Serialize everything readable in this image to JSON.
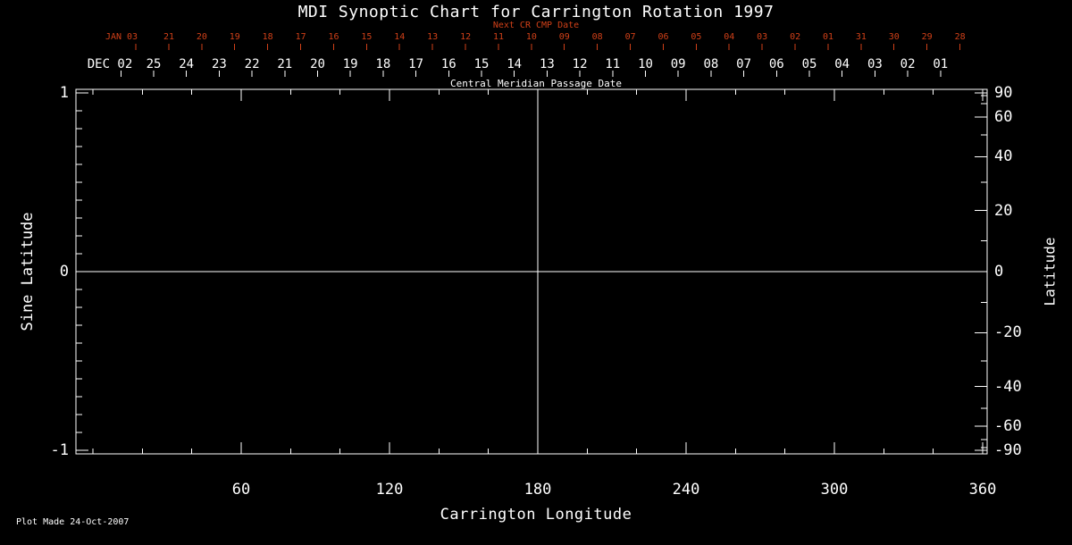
{
  "colors": {
    "background": "#000000",
    "foreground": "#ffffff",
    "accent_red": "#d04018"
  },
  "header": {
    "title": "MDI Synoptic Chart for Carrington Rotation 1997",
    "next_cr_label": "Next CR CMP Date",
    "cmp_axis_label": "Central Meridian Passage Date"
  },
  "footer": {
    "plot_made": "Plot Made 24-Oct-2007"
  },
  "chart_data": {
    "type": "heatmap",
    "title": "MDI Synoptic Chart for Carrington Rotation 1997",
    "values": [],
    "xlabel": "Carrington Longitude",
    "x_range": [
      -7,
      362
    ],
    "x_major_ticks": [
      60,
      120,
      180,
      240,
      300,
      360
    ],
    "x_minor_tick_step": 20,
    "ylabel_left": "Sine Latitude",
    "y_range_sine": [
      -1.02,
      1.02
    ],
    "y_major_ticks_sine": [
      1,
      0,
      -1
    ],
    "y_minor_tick_step_sine": 0.1,
    "ylabel_right": "Latitude",
    "right_tick_step_deg": 10,
    "right_labeled_ticks_deg": [
      90,
      60,
      40,
      20,
      0,
      -20,
      -40,
      -60,
      -90
    ],
    "reference_lines": {
      "longitude": 180,
      "sine_latitude": 0
    },
    "grid": false,
    "legend": null,
    "top_axes": {
      "cmp_label": "Central Meridian Passage Date",
      "next_cr_cmp_label": "Next CR CMP Date",
      "cmp_dates": [
        "DEC 02",
        "25",
        "24",
        "23",
        "22",
        "21",
        "20",
        "19",
        "18",
        "17",
        "16",
        "15",
        "14",
        "13",
        "12",
        "11",
        "10",
        "09",
        "08",
        "07",
        "06",
        "05",
        "04",
        "03",
        "02",
        "01"
      ],
      "next_cr_cmp_dates": [
        "JAN 03",
        "21",
        "20",
        "19",
        "18",
        "17",
        "16",
        "15",
        "14",
        "13",
        "12",
        "11",
        "10",
        "09",
        "08",
        "07",
        "06",
        "05",
        "04",
        "03",
        "02",
        "01",
        "31",
        "30",
        "29",
        "28"
      ]
    }
  }
}
